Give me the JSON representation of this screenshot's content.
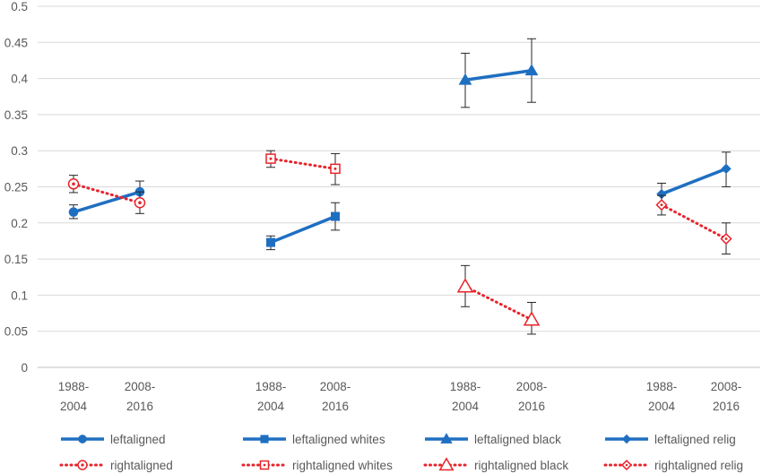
{
  "chart_data": {
    "type": "line",
    "title": "",
    "xlabel": "",
    "ylabel": "",
    "ylim": [
      0,
      0.5
    ],
    "yticks": [
      "0",
      "0.05",
      "0.1",
      "0.15",
      "0.2",
      "0.25",
      "0.3",
      "0.35",
      "0.4",
      "0.45",
      "0.5"
    ],
    "grid": true,
    "legend_placement": "bottom",
    "x_groups": [
      {
        "categories": [
          [
            "1988-",
            "2004"
          ],
          [
            "2008-",
            "2016"
          ]
        ]
      },
      {
        "categories": [
          [
            "1988-",
            "2004"
          ],
          [
            "2008-",
            "2016"
          ]
        ]
      },
      {
        "categories": [
          [
            "1988-",
            "2004"
          ],
          [
            "2008-",
            "2016"
          ]
        ]
      },
      {
        "categories": [
          [
            "1988-",
            "2004"
          ],
          [
            "2008-",
            "2016"
          ]
        ]
      }
    ],
    "series": [
      {
        "name": "leftaligned",
        "group": 0,
        "style": "solid",
        "marker": "circle",
        "color": "#1f6fc1",
        "values": [
          0.215,
          0.243
        ],
        "error_low": [
          0.206,
          0.228
        ],
        "error_high": [
          0.225,
          0.258
        ]
      },
      {
        "name": "rightaligned",
        "group": 0,
        "style": "dotted",
        "marker": "circle-open",
        "color": "#e8232a",
        "values": [
          0.254,
          0.228
        ],
        "error_low": [
          0.242,
          0.213
        ],
        "error_high": [
          0.266,
          0.243
        ]
      },
      {
        "name": "leftaligned whites",
        "group": 1,
        "style": "solid",
        "marker": "square",
        "color": "#1f6fc1",
        "values": [
          0.173,
          0.209
        ],
        "error_low": [
          0.163,
          0.19
        ],
        "error_high": [
          0.182,
          0.228
        ]
      },
      {
        "name": "rightaligned whites",
        "group": 1,
        "style": "dotted",
        "marker": "square-open",
        "color": "#e8232a",
        "values": [
          0.289,
          0.275
        ],
        "error_low": [
          0.277,
          0.253
        ],
        "error_high": [
          0.3,
          0.296
        ]
      },
      {
        "name": "leftaligned black",
        "group": 2,
        "style": "solid",
        "marker": "triangle",
        "color": "#1f6fc1",
        "values": [
          0.398,
          0.411
        ],
        "error_low": [
          0.36,
          0.367
        ],
        "error_high": [
          0.435,
          0.455
        ]
      },
      {
        "name": "rightaligned black",
        "group": 2,
        "style": "dotted",
        "marker": "triangle-open",
        "color": "#e8232a",
        "values": [
          0.112,
          0.066
        ],
        "error_low": [
          0.084,
          0.046
        ],
        "error_high": [
          0.141,
          0.09
        ]
      },
      {
        "name": "leftaligned relig",
        "group": 3,
        "style": "solid",
        "marker": "diamond",
        "color": "#1f6fc1",
        "values": [
          0.24,
          0.275
        ],
        "error_low": [
          0.226,
          0.25
        ],
        "error_high": [
          0.255,
          0.298
        ]
      },
      {
        "name": "rightaligned relig",
        "group": 3,
        "style": "dotted",
        "marker": "diamond-open",
        "color": "#e8232a",
        "values": [
          0.225,
          0.178
        ],
        "error_low": [
          0.211,
          0.157
        ],
        "error_high": [
          0.238,
          0.2
        ]
      }
    ]
  }
}
